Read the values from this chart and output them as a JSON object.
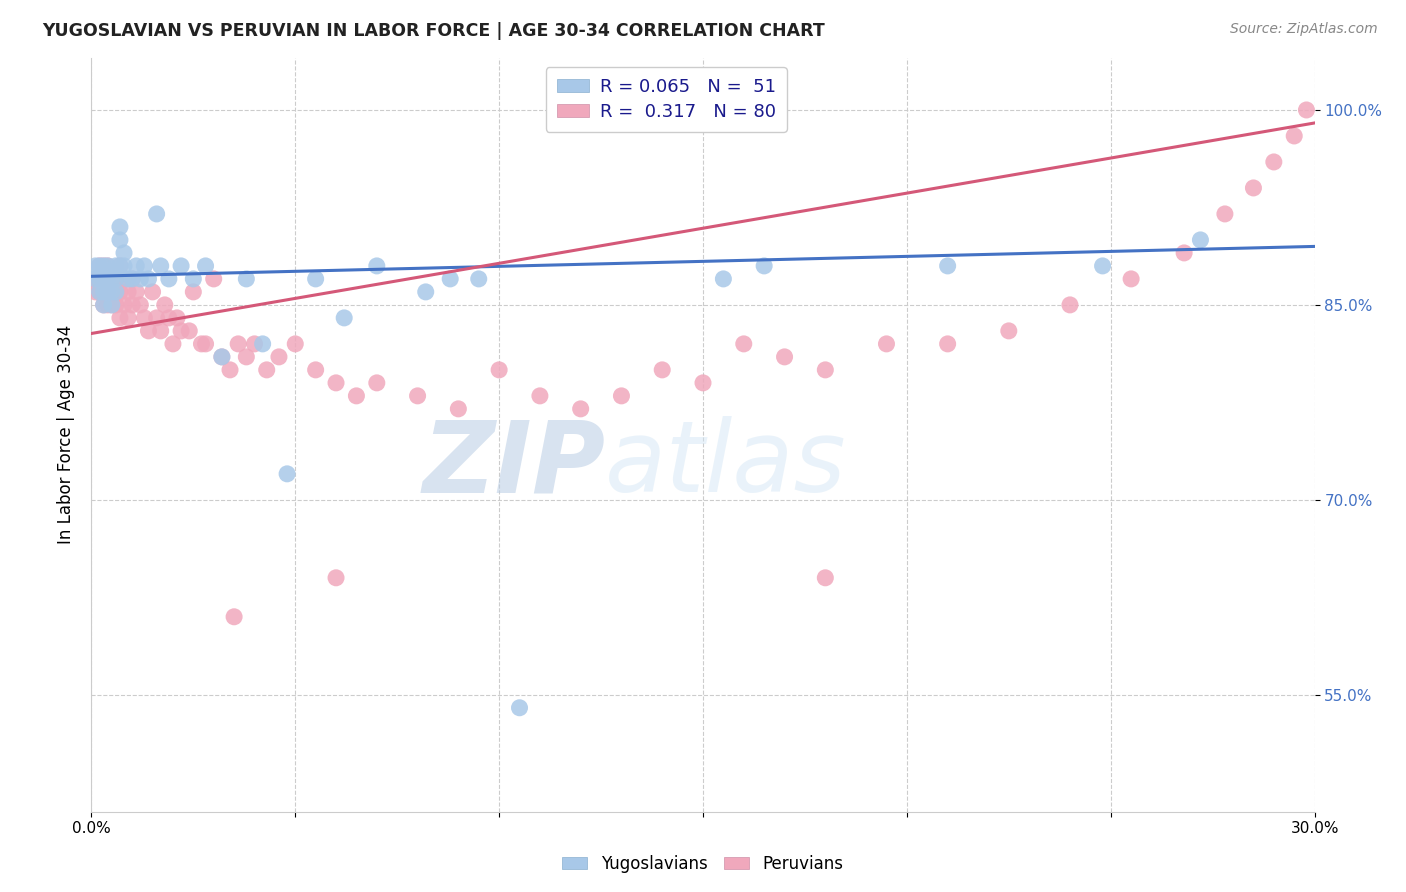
{
  "title": "YUGOSLAVIAN VS PERUVIAN IN LABOR FORCE | AGE 30-34 CORRELATION CHART",
  "source": "Source: ZipAtlas.com",
  "ylabel": "In Labor Force | Age 30-34",
  "x_min": 0.0,
  "x_max": 0.3,
  "y_min": 0.46,
  "y_max": 1.04,
  "x_ticks": [
    0.0,
    0.05,
    0.1,
    0.15,
    0.2,
    0.25,
    0.3
  ],
  "x_tick_labels": [
    "0.0%",
    "",
    "",
    "",
    "",
    "",
    "30.0%"
  ],
  "y_ticks": [
    0.55,
    0.7,
    0.85,
    1.0
  ],
  "y_tick_labels": [
    "55.0%",
    "70.0%",
    "85.0%",
    "100.0%"
  ],
  "yugo_color": "#a8c8e8",
  "peru_color": "#f0a8bc",
  "yugo_line_color": "#4472c4",
  "peru_line_color": "#d45878",
  "watermark_zip": "ZIP",
  "watermark_atlas": "atlas",
  "yugo_scatter_x": [
    0.001,
    0.001,
    0.002,
    0.002,
    0.002,
    0.003,
    0.003,
    0.003,
    0.003,
    0.004,
    0.004,
    0.004,
    0.005,
    0.005,
    0.005,
    0.006,
    0.006,
    0.006,
    0.007,
    0.007,
    0.007,
    0.008,
    0.008,
    0.009,
    0.01,
    0.011,
    0.012,
    0.013,
    0.014,
    0.016,
    0.017,
    0.019,
    0.022,
    0.025,
    0.028,
    0.032,
    0.038,
    0.042,
    0.048,
    0.055,
    0.062,
    0.07,
    0.082,
    0.088,
    0.095,
    0.105,
    0.155,
    0.165,
    0.21,
    0.248,
    0.272
  ],
  "yugo_scatter_y": [
    0.88,
    0.87,
    0.88,
    0.87,
    0.86,
    0.88,
    0.87,
    0.86,
    0.85,
    0.88,
    0.87,
    0.86,
    0.87,
    0.86,
    0.85,
    0.88,
    0.87,
    0.86,
    0.9,
    0.91,
    0.88,
    0.89,
    0.88,
    0.87,
    0.87,
    0.88,
    0.87,
    0.88,
    0.87,
    0.92,
    0.88,
    0.87,
    0.88,
    0.87,
    0.88,
    0.81,
    0.87,
    0.82,
    0.72,
    0.87,
    0.84,
    0.88,
    0.86,
    0.87,
    0.87,
    0.54,
    0.87,
    0.88,
    0.88,
    0.88,
    0.9
  ],
  "peru_scatter_x": [
    0.001,
    0.001,
    0.002,
    0.002,
    0.002,
    0.003,
    0.003,
    0.003,
    0.004,
    0.004,
    0.004,
    0.005,
    0.005,
    0.005,
    0.006,
    0.006,
    0.006,
    0.007,
    0.007,
    0.007,
    0.008,
    0.008,
    0.009,
    0.009,
    0.01,
    0.01,
    0.011,
    0.012,
    0.013,
    0.014,
    0.015,
    0.016,
    0.017,
    0.018,
    0.019,
    0.02,
    0.021,
    0.022,
    0.024,
    0.025,
    0.027,
    0.028,
    0.03,
    0.032,
    0.034,
    0.036,
    0.038,
    0.04,
    0.043,
    0.046,
    0.05,
    0.055,
    0.06,
    0.065,
    0.07,
    0.08,
    0.09,
    0.1,
    0.11,
    0.12,
    0.13,
    0.14,
    0.15,
    0.16,
    0.17,
    0.18,
    0.195,
    0.21,
    0.225,
    0.24,
    0.255,
    0.268,
    0.278,
    0.285,
    0.29,
    0.295,
    0.298,
    0.18,
    0.06,
    0.035
  ],
  "peru_scatter_y": [
    0.87,
    0.86,
    0.88,
    0.87,
    0.86,
    0.88,
    0.86,
    0.85,
    0.88,
    0.86,
    0.85,
    0.87,
    0.86,
    0.85,
    0.87,
    0.86,
    0.85,
    0.88,
    0.86,
    0.84,
    0.87,
    0.85,
    0.86,
    0.84,
    0.87,
    0.85,
    0.86,
    0.85,
    0.84,
    0.83,
    0.86,
    0.84,
    0.83,
    0.85,
    0.84,
    0.82,
    0.84,
    0.83,
    0.83,
    0.86,
    0.82,
    0.82,
    0.87,
    0.81,
    0.8,
    0.82,
    0.81,
    0.82,
    0.8,
    0.81,
    0.82,
    0.8,
    0.79,
    0.78,
    0.79,
    0.78,
    0.77,
    0.8,
    0.78,
    0.77,
    0.78,
    0.8,
    0.79,
    0.82,
    0.81,
    0.8,
    0.82,
    0.82,
    0.83,
    0.85,
    0.87,
    0.89,
    0.92,
    0.94,
    0.96,
    0.98,
    1.0,
    0.64,
    0.64,
    0.61
  ],
  "background_color": "#ffffff",
  "grid_color": "#cccccc"
}
